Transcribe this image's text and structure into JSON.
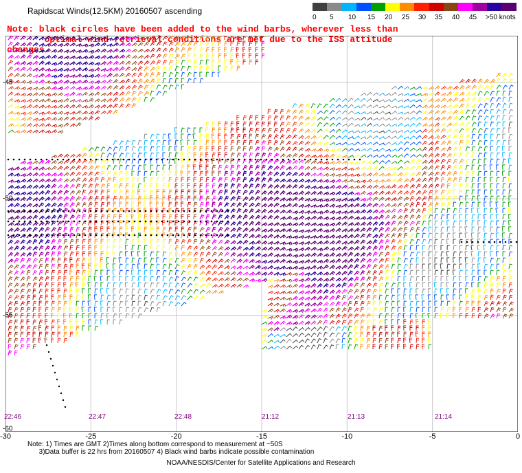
{
  "title": "Rapidscat Winds(12.5KM) 20160507 ascending",
  "note": "Note: black circles have been added to the wind barbs, wherever less than\n       optimal wind retrieval conditions are met due to the ISS attitude changes.",
  "legend": {
    "labels": [
      "0",
      "5",
      "10",
      "15",
      "20",
      "25",
      "30",
      "35",
      "40",
      "45",
      ">50 knots"
    ],
    "colors": [
      "#404040",
      "#8a8a8a",
      "#00b4ff",
      "#0050ff",
      "#00a000",
      "#ffff00",
      "#ff8c00",
      "#ff2000",
      "#d00000",
      "#8b4513",
      "#ff00ff",
      "#a000a0",
      "#2a00a0",
      "#5a0070"
    ]
  },
  "axis": {
    "x_ticks": [
      "-30",
      "-25",
      "-20",
      "-15",
      "-10",
      "-5",
      "0"
    ],
    "y_ticks": [
      "-45",
      "-50",
      "-55",
      "-60"
    ]
  },
  "time_labels": [
    "22:46",
    "22:47",
    "22:48",
    "21:12",
    "21:13",
    "21:14"
  ],
  "footnote": "Note: 1) Times are GMT 2)Times along bottom correspond to measurement at ~50S\n      3)Data buffer is 22 hrs from 20160507 4) Black wind barbs indicate possible contamination",
  "credit": "NOAA/NESDIS/Center for Satellite Applications and Research",
  "map_data": {
    "lon_range": [
      -30,
      0
    ],
    "lat_range": [
      -60,
      -43
    ],
    "barb_speeds_knots": [
      0,
      5,
      10,
      15,
      20,
      25,
      30,
      35,
      40,
      45,
      50
    ]
  }
}
